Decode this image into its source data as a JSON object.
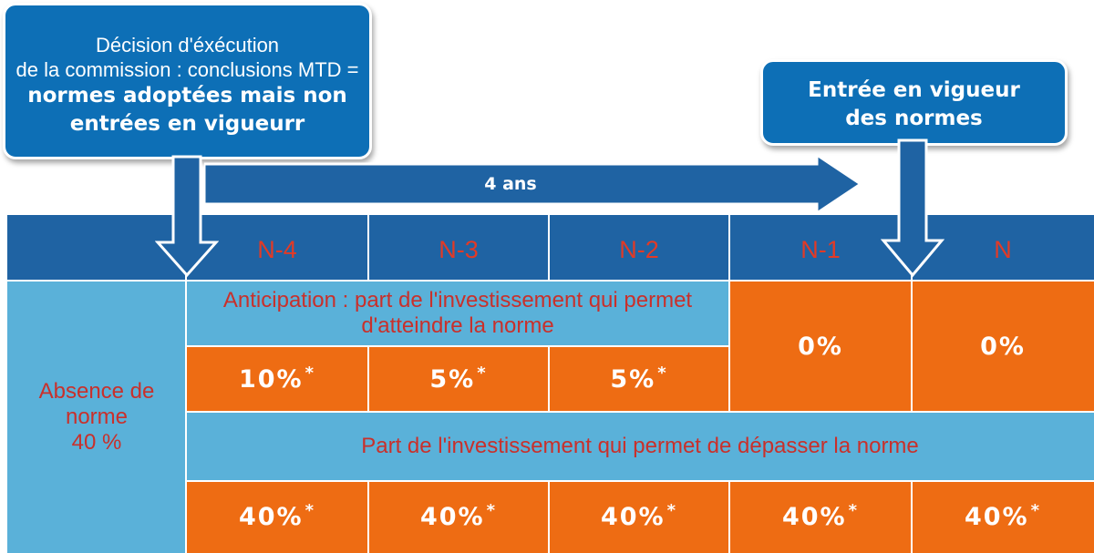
{
  "callout_left": {
    "line1": "Décision d'éxécution",
    "line2": "de la commission : conclusions MTD =",
    "line3": "normes adoptées mais non",
    "line4": "entrées en vigueurr"
  },
  "callout_right": {
    "line1": "Entrée en vigueur",
    "line2": "des normes"
  },
  "duration_arrow": {
    "label": "4 ans"
  },
  "years": [
    "N-4",
    "N-3",
    "N-2",
    "N-1",
    "N"
  ],
  "absence": {
    "line1": "Absence de",
    "line2": "norme",
    "line3": "40 %"
  },
  "anticipation": {
    "line1": "Anticipation : part de l'investissement qui permet",
    "line2": "d'atteindre la norme"
  },
  "anticipation_values": [
    "10%",
    "5%",
    "5%"
  ],
  "anticipation_marker": "*",
  "n1_value": "0%",
  "n_value": "0%",
  "exceed_label": "Part de l'investissement qui permet de dépasser la norme",
  "exceed_values": [
    "40%",
    "40%",
    "40%",
    "40%",
    "40%"
  ],
  "exceed_marker": "*",
  "colors": {
    "callout_blue": "#0d6fb6",
    "header_blue": "#1f63a3",
    "light_blue": "#5ab1d9",
    "orange": "#ee6c13",
    "red_text": "#e23a26"
  }
}
